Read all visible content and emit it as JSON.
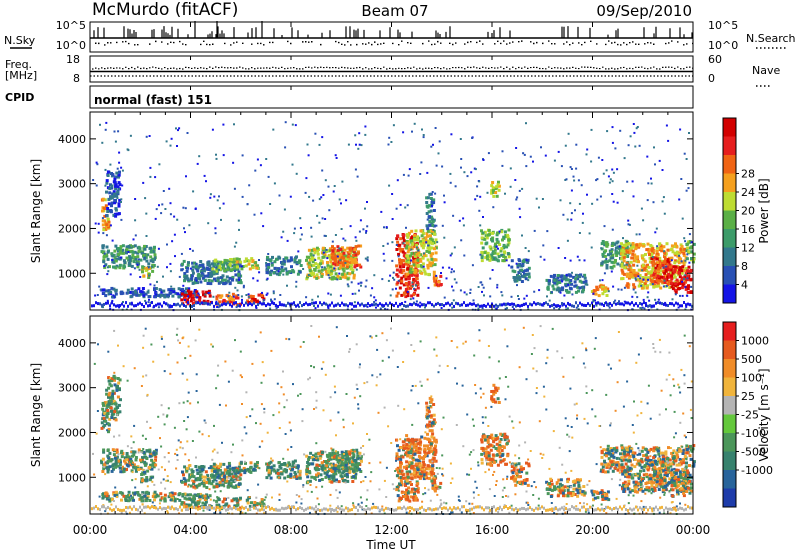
{
  "header": {
    "station": "McMurdo (fitACF)",
    "beam": "Beam 07",
    "date": "09/Sep/2010"
  },
  "chart_data": [
    {
      "type": "line",
      "panel": "noise",
      "left_label": "N.Sky",
      "right_label": "N.Search",
      "left_ticks": [
        "10^5",
        "10^0"
      ],
      "right_ticks": [
        "10^5",
        "10^0"
      ]
    },
    {
      "type": "line",
      "panel": "frequency",
      "left_label_line1": "Freq.",
      "left_label_line2": "[MHz]",
      "right_label": "Nave",
      "left_ticks": [
        "18",
        "8"
      ],
      "right_ticks": [
        "60",
        "0"
      ]
    },
    {
      "type": "table",
      "panel": "cpid",
      "label": "CPID",
      "value": "normal (fast) 151"
    },
    {
      "type": "heatmap",
      "panel": "power",
      "ylabel": "Slant Range [km]",
      "yticks": [
        "1000",
        "2000",
        "3000",
        "4000"
      ],
      "ylim": [
        180,
        4600
      ],
      "colorbar_label": "Power [dB]",
      "colorbar_ticks": [
        "4",
        "8",
        "12",
        "16",
        "20",
        "24",
        "28"
      ],
      "colorbar_colors": [
        "#1414e6",
        "#2850b4",
        "#32788c",
        "#3c9b69",
        "#5aaf46",
        "#bedc32",
        "#f5a01e",
        "#f06414",
        "#e61e1e",
        "#d20000"
      ]
    },
    {
      "type": "heatmap",
      "panel": "velocity",
      "ylabel": "Slant Range [km]",
      "yticks": [
        "1000",
        "2000",
        "3000",
        "4000"
      ],
      "ylim": [
        180,
        4600
      ],
      "colorbar_label": "Velocity [m s⁻¹]",
      "colorbar_ticks": [
        "1000",
        "500",
        "100",
        "25",
        "-25",
        "-100",
        "-500",
        "-1000"
      ],
      "colorbar_colors": [
        "#1e3caa",
        "#28649b",
        "#37826e",
        "#4b965a",
        "#64c83c",
        "#b4b4b4",
        "#f0b43c",
        "#f08c28",
        "#e65a1e",
        "#e61e1e"
      ],
      "xlabel": "Time UT",
      "xticks": [
        "00:00",
        "04:00",
        "08:00",
        "12:00",
        "16:00",
        "20:00",
        "00:00"
      ]
    }
  ]
}
